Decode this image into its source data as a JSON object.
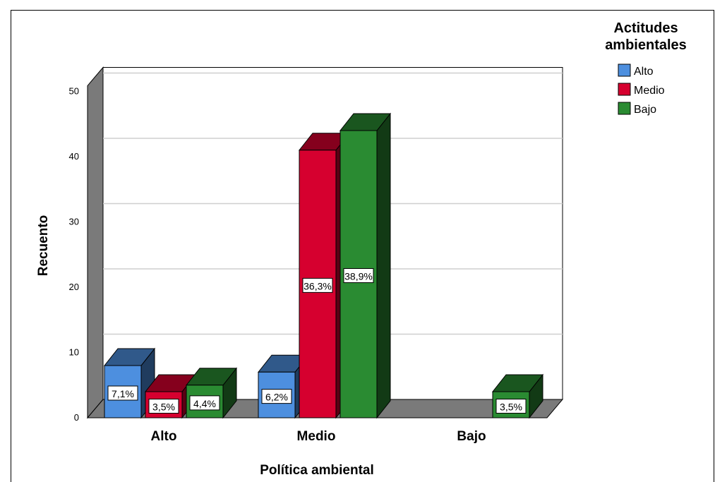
{
  "chart_data": {
    "type": "bar",
    "xlabel": "Política ambiental",
    "ylabel": "Recuento",
    "categories": [
      "Alto",
      "Medio",
      "Bajo"
    ],
    "ylim": [
      0,
      50
    ],
    "yticks": [
      0,
      10,
      20,
      30,
      40,
      50
    ],
    "grid": true,
    "legend": {
      "title_lines": [
        "Actitudes",
        "ambientales"
      ],
      "position": "top-right"
    },
    "series": [
      {
        "name": "Alto",
        "color": "#4d8fdf",
        "values": [
          8,
          7,
          null
        ],
        "labels": [
          "7,1%",
          "6,2%",
          ""
        ]
      },
      {
        "name": "Medio",
        "color": "#d6002f",
        "values": [
          4,
          41,
          null
        ],
        "labels": [
          "3,5%",
          "36,3%",
          ""
        ]
      },
      {
        "name": "Bajo",
        "color": "#2a8b32",
        "values": [
          5,
          44,
          4
        ],
        "labels": [
          "4,4%",
          "38,9%",
          "3,5%"
        ]
      }
    ]
  }
}
